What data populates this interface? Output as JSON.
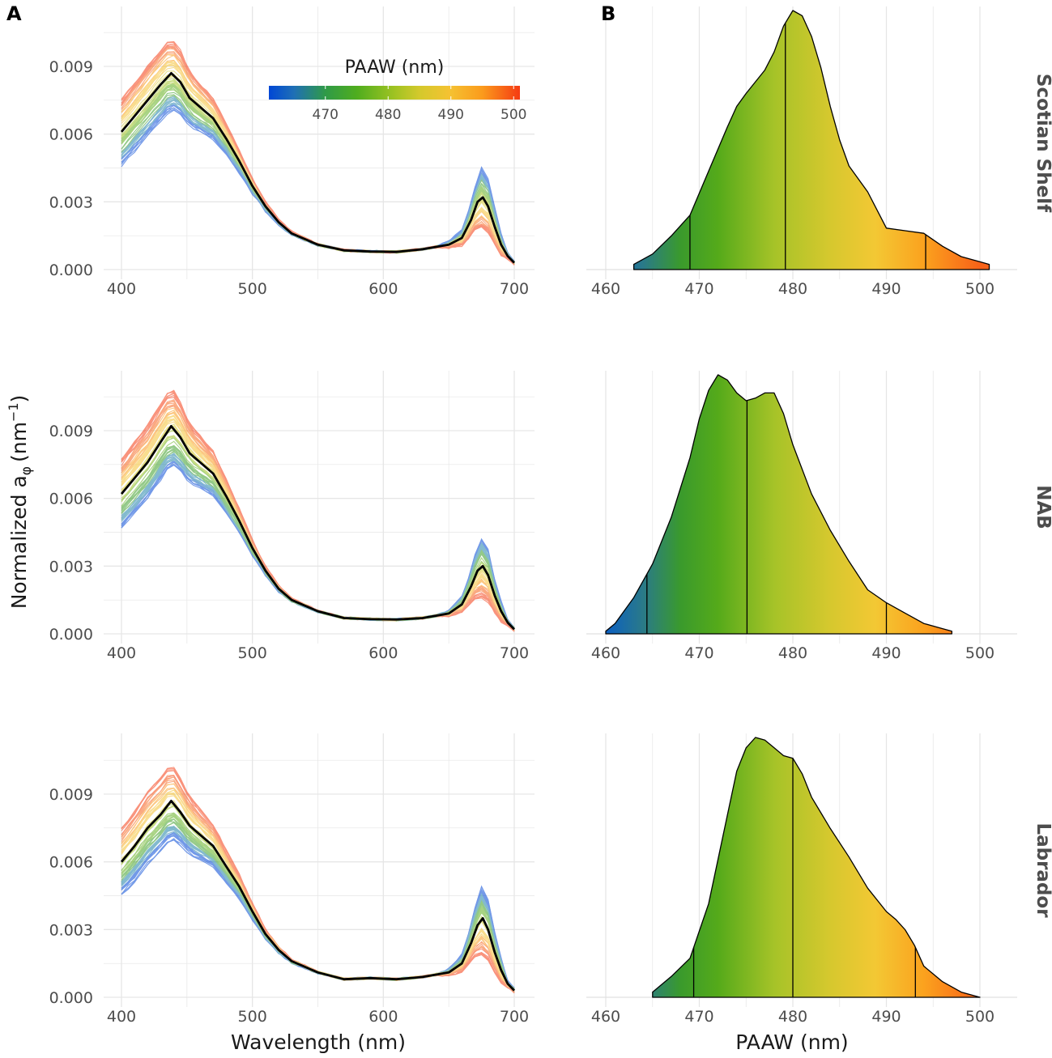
{
  "chart_data": [
    {
      "type": "line",
      "panel": "A",
      "facet": "Scotian Shelf",
      "xlabel": "Wavelength (nm)",
      "ylabel": "Normalized aφ (nm−1)",
      "xlim": [
        400,
        700
      ],
      "ylim": [
        0,
        0.0108
      ],
      "xticks": [
        400,
        500,
        600,
        700
      ],
      "yticks": [
        "0.000",
        "0.003",
        "0.006",
        "0.009"
      ],
      "color_scale": {
        "title": "PAAW (nm)",
        "range": [
          461,
          501
        ],
        "ticks": [
          470,
          480,
          490,
          500
        ]
      },
      "mean_spectrum": {
        "x": [
          400,
          410,
          420,
          430,
          438,
          445,
          452,
          460,
          470,
          480,
          490,
          500,
          510,
          520,
          530,
          550,
          570,
          590,
          610,
          630,
          650,
          660,
          667,
          672,
          676,
          680,
          685,
          690,
          695,
          700
        ],
        "y": [
          0.0061,
          0.0068,
          0.0075,
          0.0082,
          0.0087,
          0.0083,
          0.0076,
          0.0072,
          0.0067,
          0.0058,
          0.0048,
          0.0037,
          0.0028,
          0.0021,
          0.0016,
          0.0011,
          0.00085,
          0.0008,
          0.00078,
          0.0009,
          0.0011,
          0.0014,
          0.0022,
          0.003,
          0.0032,
          0.0028,
          0.0019,
          0.0011,
          0.0006,
          0.0003
        ]
      }
    },
    {
      "type": "line",
      "panel": "A",
      "facet": "NAB",
      "xlim": [
        400,
        700
      ],
      "ylim": [
        0,
        0.0108
      ],
      "xticks": [
        400,
        500,
        600,
        700
      ],
      "yticks": [
        "0.000",
        "0.003",
        "0.006",
        "0.009"
      ],
      "mean_spectrum": {
        "x": [
          400,
          410,
          420,
          430,
          438,
          445,
          452,
          460,
          470,
          480,
          490,
          500,
          510,
          520,
          530,
          550,
          570,
          590,
          610,
          630,
          650,
          660,
          667,
          672,
          676,
          680,
          685,
          690,
          695,
          700
        ],
        "y": [
          0.0062,
          0.0069,
          0.0076,
          0.0085,
          0.0092,
          0.0087,
          0.008,
          0.0076,
          0.0071,
          0.0061,
          0.005,
          0.0038,
          0.0028,
          0.002,
          0.0015,
          0.001,
          0.0007,
          0.00065,
          0.00063,
          0.0007,
          0.0009,
          0.0013,
          0.0021,
          0.0028,
          0.003,
          0.0026,
          0.0017,
          0.001,
          0.0005,
          0.0002
        ]
      }
    },
    {
      "type": "line",
      "panel": "A",
      "facet": "Labrador",
      "xlim": [
        400,
        700
      ],
      "ylim": [
        0,
        0.0108
      ],
      "xticks": [
        "400",
        "500",
        "600",
        "700"
      ],
      "yticks": [
        "0.000",
        "0.003",
        "0.006",
        "0.009"
      ],
      "mean_spectrum": {
        "x": [
          400,
          410,
          420,
          430,
          438,
          445,
          452,
          460,
          470,
          480,
          490,
          500,
          510,
          520,
          530,
          550,
          570,
          590,
          610,
          630,
          650,
          660,
          667,
          672,
          676,
          680,
          685,
          690,
          695,
          700
        ],
        "y": [
          0.006,
          0.0067,
          0.0075,
          0.0081,
          0.0087,
          0.0082,
          0.0076,
          0.0072,
          0.0067,
          0.0058,
          0.0049,
          0.0038,
          0.0028,
          0.0021,
          0.0016,
          0.0011,
          0.0008,
          0.00085,
          0.0008,
          0.0009,
          0.0011,
          0.0015,
          0.0024,
          0.0032,
          0.0035,
          0.003,
          0.002,
          0.0012,
          0.0006,
          0.0003
        ]
      }
    },
    {
      "type": "area",
      "panel": "B",
      "facet": "Scotian Shelf",
      "xlim": [
        458,
        503
      ],
      "xticks": [
        460,
        470,
        480,
        490,
        500
      ],
      "density": {
        "x": [
          463,
          465,
          467,
          469,
          471,
          473,
          474,
          475,
          477,
          478,
          479,
          480,
          481,
          482,
          483,
          484,
          485,
          486,
          488,
          490,
          492,
          494,
          496,
          498,
          500,
          501
        ],
        "y": [
          0.02,
          0.06,
          0.13,
          0.21,
          0.38,
          0.55,
          0.63,
          0.68,
          0.77,
          0.84,
          0.94,
          1.0,
          0.98,
          0.9,
          0.78,
          0.63,
          0.5,
          0.4,
          0.3,
          0.16,
          0.15,
          0.14,
          0.09,
          0.05,
          0.03,
          0.02
        ]
      },
      "quantile_lines": [
        469,
        479.2,
        494.2
      ]
    },
    {
      "type": "area",
      "panel": "B",
      "facet": "NAB",
      "xlim": [
        458,
        503
      ],
      "xticks": [
        460,
        470,
        480,
        490,
        500
      ],
      "density": {
        "x": [
          460,
          461,
          463,
          465,
          467,
          469,
          470,
          471,
          472,
          473,
          474,
          475,
          476,
          477,
          478,
          479,
          480,
          482,
          484,
          486,
          488,
          490,
          492,
          494,
          496,
          497
        ],
        "y": [
          0.01,
          0.04,
          0.14,
          0.27,
          0.45,
          0.68,
          0.83,
          0.94,
          1.0,
          0.98,
          0.93,
          0.9,
          0.91,
          0.93,
          0.93,
          0.85,
          0.73,
          0.54,
          0.4,
          0.28,
          0.17,
          0.12,
          0.08,
          0.04,
          0.02,
          0.01
        ]
      },
      "quantile_lines": [
        464.4,
        475.1,
        490
      ]
    },
    {
      "type": "area",
      "panel": "B",
      "facet": "Labrador",
      "xlim": [
        458,
        503
      ],
      "xticks": [
        "460",
        "470",
        "480",
        "490",
        "500"
      ],
      "density": {
        "x": [
          465,
          467,
          469,
          471,
          473,
          474,
          475,
          476,
          477,
          478,
          479,
          480,
          481,
          482,
          484,
          486,
          488,
          490,
          491,
          492,
          493,
          494,
          496,
          498,
          500
        ],
        "y": [
          0.02,
          0.08,
          0.15,
          0.36,
          0.7,
          0.87,
          0.96,
          1.0,
          0.99,
          0.96,
          0.93,
          0.92,
          0.86,
          0.77,
          0.65,
          0.54,
          0.42,
          0.33,
          0.3,
          0.26,
          0.2,
          0.12,
          0.06,
          0.02,
          0.0
        ]
      },
      "quantile_lines": [
        469.4,
        480,
        493.1
      ]
    }
  ],
  "labels": {
    "panel_a": "A",
    "panel_b": "B",
    "x_title_a": "Wavelength (nm)",
    "x_title_b": "PAAW (nm)",
    "y_title_main": "Normalized a",
    "y_title_sub": "φ",
    "y_title_unit_open": "(nm",
    "y_title_sup": "−1",
    "y_title_unit_close": ")",
    "legend_title": "PAAW (nm)",
    "strips": [
      "Scotian Shelf",
      "NAB",
      "Labrador"
    ]
  },
  "colors": {
    "mean_line": "#000000",
    "grid": "#e6e6e6",
    "palette": [
      "#0047d6",
      "#1f82a8",
      "#3b9e28",
      "#62b01e",
      "#9fc322",
      "#d4c92c",
      "#f5c232",
      "#fb9b1c",
      "#f7641b",
      "#f53b12"
    ]
  }
}
